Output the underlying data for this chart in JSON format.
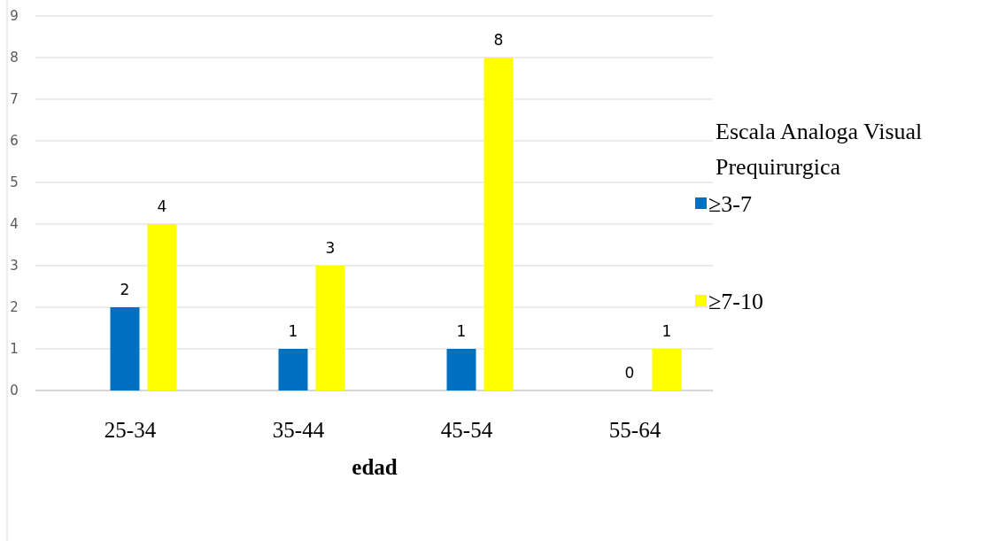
{
  "chart_data": {
    "type": "bar",
    "xlabel": "edad",
    "legend_title": "Escala Analoga Visual Prequirurgica",
    "categories": [
      "25-34",
      "35-44",
      "45-54",
      "55-64"
    ],
    "series": [
      {
        "name": "≥3-7",
        "color": "#0070c0",
        "values": [
          2,
          1,
          1,
          0
        ]
      },
      {
        "name": "≥7-10",
        "color": "#ffff00",
        "values": [
          4,
          3,
          8,
          1
        ]
      }
    ],
    "ylim": [
      0,
      9
    ],
    "yticks": [
      0,
      1,
      2,
      3,
      4,
      5,
      6,
      7,
      8,
      9
    ],
    "grid": "y",
    "legend": "right",
    "data_labels": true
  }
}
